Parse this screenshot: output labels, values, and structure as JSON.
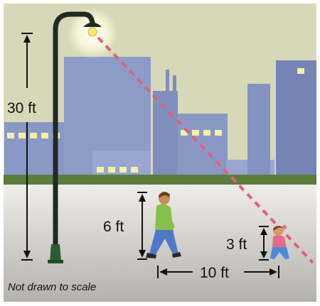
{
  "labels": {
    "pole_height": "30 ft",
    "adult_height": "6 ft",
    "child_height": "3 ft",
    "distance": "10 ft",
    "note": "Not drawn to scale"
  },
  "colors": {
    "sky": "#d6d8b8",
    "building": "#8a98c6",
    "building_dark": "#7584b3",
    "window": "#f3f0a8",
    "grass": "#5c7e3c",
    "ground": "#eceae6",
    "road": "#b9b7b1",
    "pole": "#1e2b22",
    "shadow_ray": "#e0607a",
    "adult_shirt": "#86c04a",
    "adult_pants": "#4f78c8",
    "child_shirt": "#e86a8a",
    "child_pants": "#4b8ad6"
  }
}
